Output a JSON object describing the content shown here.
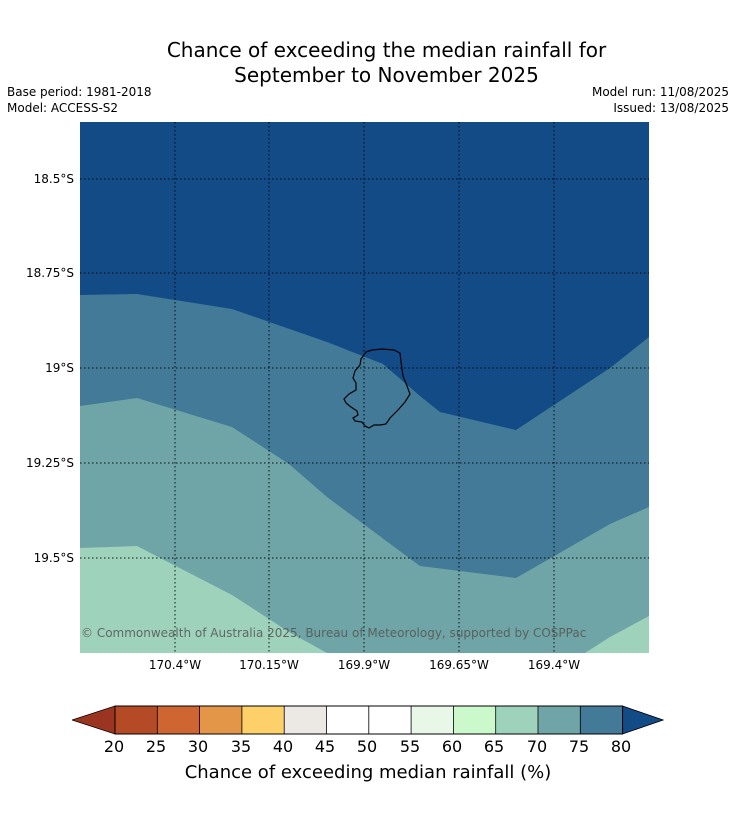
{
  "title_line1": "Chance of exceeding the median rainfall for",
  "title_line2": "September to November 2025",
  "base_period": "Base period: 1981-2018",
  "model": "Model: ACCESS-S2",
  "model_run": "Model run: 11/08/2025",
  "issued": "Issued: 13/08/2025",
  "lat_labels": [
    "18.5°S",
    "18.75°S",
    "19°S",
    "19.25°S",
    "19.5°S"
  ],
  "lon_labels": [
    "170.4°W",
    "170.15°W",
    "169.9°W",
    "169.65°W",
    "169.4°W"
  ],
  "copyright": "© Commonwealth of Australia 2025, Bureau of Meteorology, supported by COSPPac",
  "colorbar": {
    "ticks": [
      "20",
      "25",
      "30",
      "35",
      "40",
      "45",
      "50",
      "55",
      "60",
      "65",
      "70",
      "75",
      "80"
    ],
    "label": "Chance of exceeding median rainfall (%)",
    "colors": [
      "#9b3521",
      "#b54a26",
      "#cf6632",
      "#e39647",
      "#fdd06a",
      "#ece8e4",
      "#ffffff",
      "#ffffff",
      "#e9f7e9",
      "#ccf9cc",
      "#9fd2bb",
      "#6fa5a6",
      "#427a98",
      "#134b87"
    ]
  },
  "map_colors": {
    "band_80_plus": "#134b87",
    "band_75_80": "#427a98",
    "band_70_75": "#6fa5a6",
    "band_65_70": "#9fd2bb"
  }
}
